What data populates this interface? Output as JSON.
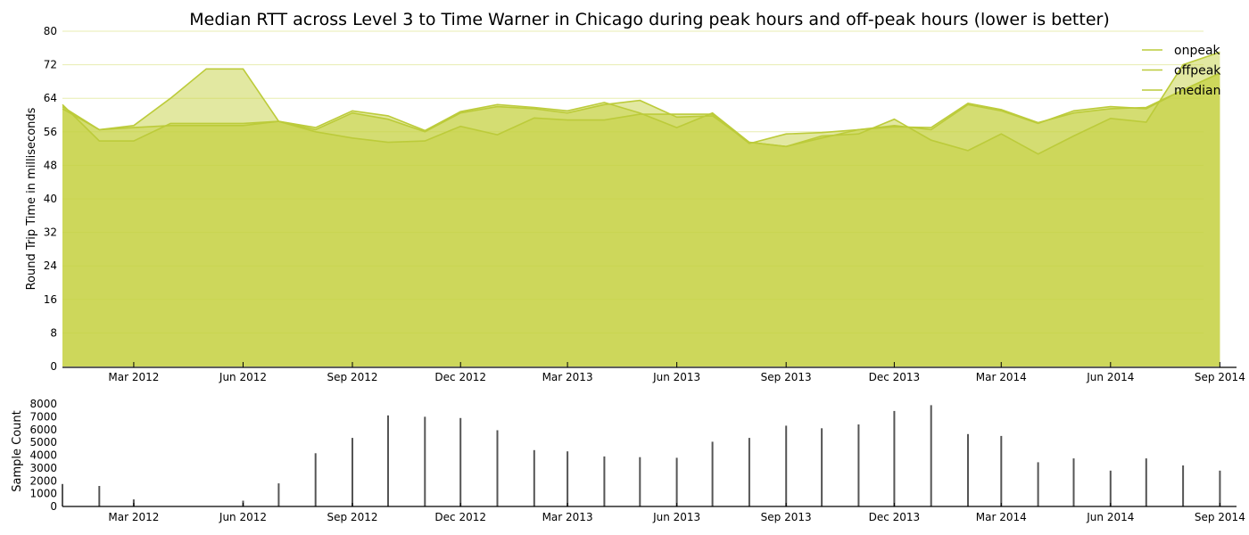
{
  "chart_data": {
    "type": "area",
    "title": "Median RTT across Level 3 to Time Warner in Chicago during peak hours and off-peak hours (lower is better)",
    "ylabel": "Round Trip Time in milliseconds",
    "ylim": [
      0,
      80
    ],
    "yticks": [
      "0",
      "8",
      "16",
      "24",
      "32",
      "40",
      "48",
      "56",
      "64",
      "72",
      "80"
    ],
    "xlim": [
      "2012-01-01",
      "2014-09-15"
    ],
    "xticks": [
      {
        "date": "2012-03-01",
        "label": "Mar 2012"
      },
      {
        "date": "2012-06-01",
        "label": "Jun 2012"
      },
      {
        "date": "2012-09-01",
        "label": "Sep 2012"
      },
      {
        "date": "2012-12-01",
        "label": "Dec 2012"
      },
      {
        "date": "2013-03-01",
        "label": "Mar 2013"
      },
      {
        "date": "2013-06-01",
        "label": "Jun 2013"
      },
      {
        "date": "2013-09-01",
        "label": "Sep 2013"
      },
      {
        "date": "2013-12-01",
        "label": "Dec 2013"
      },
      {
        "date": "2014-03-01",
        "label": "Mar 2014"
      },
      {
        "date": "2014-06-01",
        "label": "Jun 2014"
      },
      {
        "date": "2014-09-01",
        "label": "Sep 2014"
      }
    ],
    "grid": "horizontal",
    "legend_position": "top-right",
    "colors": {
      "fill": "#c6d143",
      "line": "#bccb3a",
      "grid": "#e8edb0",
      "counts": "#555555"
    },
    "x": [
      "2012-01-01",
      "2012-02-01",
      "2012-03-01",
      "2012-04-01",
      "2012-05-01",
      "2012-06-01",
      "2012-07-01",
      "2012-08-01",
      "2012-09-01",
      "2012-10-01",
      "2012-11-01",
      "2012-12-01",
      "2013-01-01",
      "2013-02-01",
      "2013-03-01",
      "2013-04-01",
      "2013-05-01",
      "2013-06-01",
      "2013-07-01",
      "2013-08-01",
      "2013-09-01",
      "2013-10-01",
      "2013-11-01",
      "2013-12-01",
      "2014-01-01",
      "2014-02-01",
      "2014-03-01",
      "2014-04-01",
      "2014-05-01",
      "2014-06-01",
      "2014-07-01",
      "2014-08-01",
      "2014-09-01"
    ],
    "series": [
      {
        "name": "onpeak",
        "values": [
          62,
          56.5,
          57.5,
          64,
          71,
          71,
          58.5,
          57,
          61,
          59.8,
          56.3,
          60.8,
          62.5,
          61.8,
          61,
          63,
          60.5,
          57,
          60.5,
          53.5,
          52.5,
          55,
          55.5,
          59,
          54,
          51.5,
          55.5,
          50.7,
          55,
          59.2,
          58.3,
          72,
          75
        ]
      },
      {
        "name": "offpeak",
        "values": [
          61.5,
          56.5,
          57,
          57.5,
          57.5,
          57.5,
          58.5,
          56.5,
          60.5,
          59,
          56,
          60.5,
          62,
          61.5,
          60.5,
          62.5,
          63.5,
          59.5,
          59.8,
          53.5,
          52.5,
          54.5,
          56.5,
          57.5,
          56.5,
          62.5,
          61,
          58,
          61,
          62,
          61.5,
          66,
          70
        ]
      },
      {
        "name": "median",
        "values": [
          62.5,
          53.8,
          53.8,
          58,
          58,
          58,
          58.5,
          56,
          54.5,
          53.5,
          53.8,
          57.3,
          55.3,
          59.3,
          58.8,
          58.8,
          60.2,
          60.2,
          60.2,
          53.2,
          55.5,
          55.8,
          56.5,
          57.2,
          57,
          62.8,
          61.3,
          58.2,
          60.5,
          61.5,
          61.8,
          66,
          70
        ]
      }
    ],
    "counts_panel": {
      "ylabel": "Sample Count",
      "ylim": [
        0,
        8000
      ],
      "yticks": [
        "0",
        "1000",
        "2000",
        "3000",
        "4000",
        "5000",
        "6000",
        "7000",
        "8000"
      ],
      "x": [
        "2012-01-01",
        "2012-02-01",
        "2012-03-01",
        "2012-06-01",
        "2012-07-01",
        "2012-08-01",
        "2012-09-01",
        "2012-10-01",
        "2012-11-01",
        "2012-12-01",
        "2013-01-01",
        "2013-02-01",
        "2013-03-01",
        "2013-04-01",
        "2013-05-01",
        "2013-06-01",
        "2013-07-01",
        "2013-08-01",
        "2013-09-01",
        "2013-10-01",
        "2013-11-01",
        "2013-12-01",
        "2014-01-01",
        "2014-02-01",
        "2014-03-01",
        "2014-04-01",
        "2014-05-01",
        "2014-06-01",
        "2014-07-01",
        "2014-08-01",
        "2014-09-01"
      ],
      "values": [
        1750,
        1600,
        550,
        450,
        1800,
        4150,
        5350,
        7100,
        7000,
        6900,
        5950,
        4400,
        4300,
        3900,
        3850,
        3800,
        5050,
        5350,
        6300,
        6100,
        6400,
        7450,
        7900,
        5650,
        5500,
        3450,
        3750,
        2800,
        3750,
        3200,
        2800
      ]
    }
  }
}
